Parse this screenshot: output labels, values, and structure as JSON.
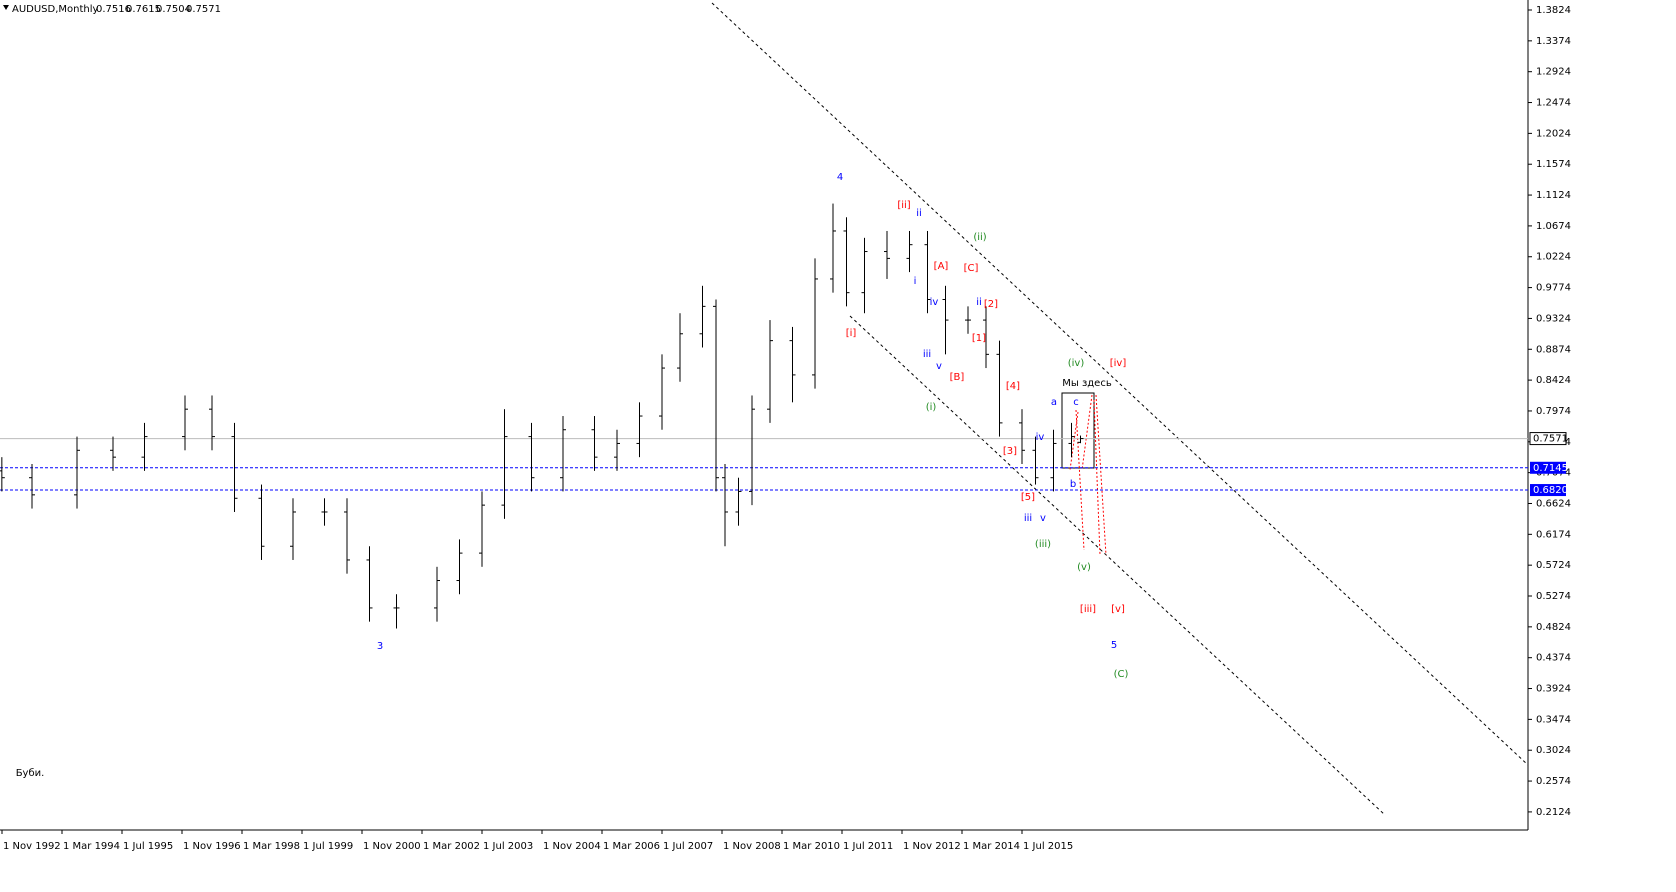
{
  "chart_data": {
    "type": "ohlc",
    "symbol": "AUDUSD,Monthly",
    "x": [
      1992.83,
      1993.5,
      1994.5,
      1995.3,
      1996.0,
      1996.9,
      1997.5,
      1998.0,
      1998.6,
      1999.3,
      2000.0,
      2000.5,
      2001.0,
      2001.6,
      2002.5,
      2003.0,
      2003.5,
      2004.0,
      2004.6,
      2005.3,
      2006.0,
      2006.5,
      2007.0,
      2007.5,
      2007.9,
      2008.4,
      2008.7,
      2008.9,
      2009.2,
      2009.5,
      2009.9,
      2010.4,
      2010.9,
      2011.3,
      2011.6,
      2012.0,
      2012.5,
      2013.0,
      2013.4,
      2013.8,
      2014.3,
      2014.7,
      2015.0,
      2015.5,
      2015.8,
      2016.2,
      2016.6,
      2016.8
    ],
    "open": [
      0.71,
      0.7,
      0.675,
      0.74,
      0.73,
      0.76,
      0.8,
      0.76,
      0.67,
      0.6,
      0.65,
      0.65,
      0.58,
      0.51,
      0.51,
      0.55,
      0.59,
      0.66,
      0.76,
      0.7,
      0.77,
      0.73,
      0.75,
      0.79,
      0.86,
      0.91,
      0.95,
      0.7,
      0.65,
      0.68,
      0.8,
      0.9,
      0.85,
      0.99,
      1.06,
      0.97,
      1.03,
      1.02,
      1.04,
      0.96,
      0.93,
      0.93,
      0.88,
      0.78,
      0.74,
      0.7,
      0.75,
      0.7516
    ],
    "high": [
      0.73,
      0.72,
      0.76,
      0.76,
      0.78,
      0.82,
      0.82,
      0.78,
      0.69,
      0.67,
      0.67,
      0.67,
      0.6,
      0.53,
      0.57,
      0.61,
      0.68,
      0.8,
      0.78,
      0.79,
      0.79,
      0.77,
      0.81,
      0.88,
      0.94,
      0.98,
      0.96,
      0.72,
      0.7,
      0.82,
      0.93,
      0.92,
      1.02,
      1.1,
      1.08,
      1.05,
      1.06,
      1.06,
      1.06,
      0.98,
      0.95,
      0.95,
      0.9,
      0.8,
      0.76,
      0.77,
      0.78,
      0.7615
    ],
    "low": [
      0.68,
      0.655,
      0.655,
      0.71,
      0.71,
      0.74,
      0.74,
      0.65,
      0.58,
      0.58,
      0.63,
      0.56,
      0.49,
      0.48,
      0.49,
      0.53,
      0.57,
      0.64,
      0.68,
      0.68,
      0.71,
      0.71,
      0.73,
      0.77,
      0.84,
      0.89,
      0.68,
      0.6,
      0.63,
      0.66,
      0.78,
      0.81,
      0.83,
      0.97,
      0.95,
      0.94,
      0.99,
      1.0,
      0.94,
      0.88,
      0.91,
      0.86,
      0.76,
      0.72,
      0.69,
      0.68,
      0.73,
      0.7504
    ],
    "close": [
      0.7,
      0.675,
      0.74,
      0.73,
      0.76,
      0.8,
      0.76,
      0.67,
      0.6,
      0.65,
      0.65,
      0.58,
      0.51,
      0.51,
      0.55,
      0.59,
      0.66,
      0.76,
      0.7,
      0.77,
      0.73,
      0.75,
      0.79,
      0.86,
      0.91,
      0.95,
      0.7,
      0.65,
      0.68,
      0.8,
      0.9,
      0.85,
      0.99,
      1.06,
      0.97,
      1.03,
      1.02,
      1.04,
      0.96,
      0.93,
      0.93,
      0.88,
      0.78,
      0.74,
      0.7,
      0.75,
      0.76,
      0.7571
    ],
    "xlim": [
      1992.789,
      2026.744
    ],
    "xticks": [
      {
        "value": 1992.8333,
        "label": "1 Nov 1992"
      },
      {
        "value": 1994.1667,
        "label": "1 Mar 1994"
      },
      {
        "value": 1995.5,
        "label": "1 Jul 1995"
      },
      {
        "value": 1996.8333,
        "label": "1 Nov 1996"
      },
      {
        "value": 1998.1667,
        "label": "1 Mar 1998"
      },
      {
        "value": 1999.5,
        "label": "1 Jul 1999"
      },
      {
        "value": 2000.8333,
        "label": "1 Nov 2000"
      },
      {
        "value": 2002.1667,
        "label": "1 Mar 2002"
      },
      {
        "value": 2003.5,
        "label": "1 Jul 2003"
      },
      {
        "value": 2004.8333,
        "label": "1 Nov 2004"
      },
      {
        "value": 2006.1667,
        "label": "1 Mar 2006"
      },
      {
        "value": 2007.5,
        "label": "1 Jul 2007"
      },
      {
        "value": 2008.8333,
        "label": "1 Nov 2008"
      },
      {
        "value": 2010.1667,
        "label": "1 Mar 2010"
      },
      {
        "value": 2011.5,
        "label": "1 Jul 2011"
      },
      {
        "value": 2012.8333,
        "label": "1 Nov 2012"
      },
      {
        "value": 2014.1667,
        "label": "1 Mar 2014"
      },
      {
        "value": 2015.5,
        "label": "1 Jul 2015"
      }
    ],
    "ylim": [
      0.186,
      1.397
    ],
    "yticks": [
      1.3824,
      1.3374,
      1.2924,
      1.2474,
      1.2024,
      1.1574,
      1.1124,
      1.0674,
      1.0224,
      0.9774,
      0.9324,
      0.8874,
      0.8424,
      0.7974,
      0.7524,
      0.7074,
      0.6624,
      0.6174,
      0.5724,
      0.5274,
      0.4824,
      0.4374,
      0.3924,
      0.3474,
      0.3024,
      0.2574,
      0.2124
    ],
    "levels": [
      {
        "value": 0.7145,
        "label": "0.7145"
      },
      {
        "value": 0.682,
        "label": "0.6820"
      }
    ],
    "level_color": "#0000ff",
    "bar_color": "#000000",
    "annotations": [
      {
        "text": "4",
        "color": "#0000ff"
      },
      {
        "text": "3",
        "color": "#0000ff"
      },
      {
        "text": "[ii]",
        "color": "#ff0000"
      },
      {
        "text": "ii",
        "color": "#0000ff"
      },
      {
        "text": "(ii)",
        "color": "#228b22"
      },
      {
        "text": "[A]",
        "color": "#ff0000"
      },
      {
        "text": "[C]",
        "color": "#ff0000"
      },
      {
        "text": "i",
        "color": "#0000ff"
      },
      {
        "text": "iv",
        "color": "#0000ff"
      },
      {
        "text": "ii",
        "color": "#0000ff"
      },
      {
        "text": "[2]",
        "color": "#ff0000"
      },
      {
        "text": "[i]",
        "color": "#ff0000"
      },
      {
        "text": "[1]",
        "color": "#ff0000"
      },
      {
        "text": "iii",
        "color": "#0000ff"
      },
      {
        "text": "v",
        "color": "#0000ff"
      },
      {
        "text": "[B]",
        "color": "#ff0000"
      },
      {
        "text": "(iv)",
        "color": "#228b22"
      },
      {
        "text": "[iv]",
        "color": "#ff0000"
      },
      {
        "text": "[4]",
        "color": "#ff0000"
      },
      {
        "text": "Мы здесь",
        "color": "#000000"
      },
      {
        "text": "a",
        "color": "#0000ff"
      },
      {
        "text": "c",
        "color": "#0000ff"
      },
      {
        "text": "(i)",
        "color": "#228b22"
      },
      {
        "text": "iv",
        "color": "#0000ff"
      },
      {
        "text": "[3]",
        "color": "#ff0000"
      },
      {
        "text": "b",
        "color": "#0000ff"
      },
      {
        "text": "[5]",
        "color": "#ff0000"
      },
      {
        "text": "iii",
        "color": "#0000ff"
      },
      {
        "text": "v",
        "color": "#0000ff"
      },
      {
        "text": "(iii)",
        "color": "#228b22"
      },
      {
        "text": "(v)",
        "color": "#228b22"
      },
      {
        "text": "[iii]",
        "color": "#ff0000"
      },
      {
        "text": "[v]",
        "color": "#ff0000"
      },
      {
        "text": "5",
        "color": "#0000ff"
      },
      {
        "text": "(C)",
        "color": "#228b22"
      },
      {
        "text": "Буби.",
        "color": "#000000"
      }
    ]
  }
}
